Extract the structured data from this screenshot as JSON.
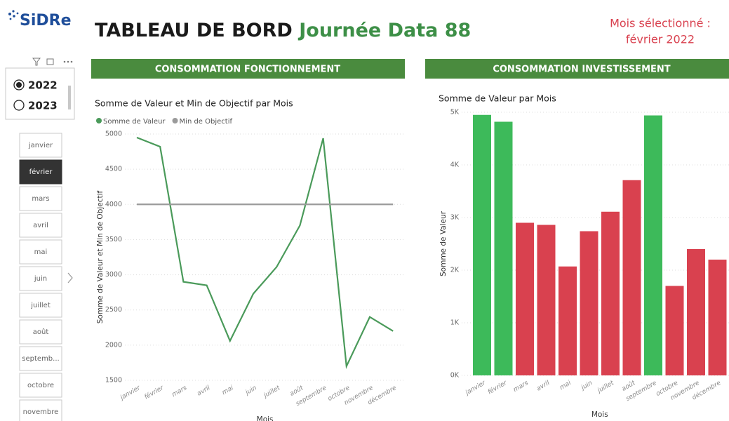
{
  "header": {
    "logo": "SiDRe",
    "title": "TABLEAU DE BORD",
    "title_highlight": "Journée Data 88",
    "selected_label": "Mois sélectionné :",
    "selected_value": "février 2022"
  },
  "year_slicer": {
    "options": [
      "2022",
      "2023"
    ],
    "selected": "2022"
  },
  "month_slicer": {
    "options": [
      "janvier",
      "février",
      "mars",
      "avril",
      "mai",
      "juin",
      "juillet",
      "août",
      "septemb...",
      "octobre",
      "novembre"
    ],
    "selected": "février"
  },
  "panels": [
    "CONSOMMATION FONCTIONNEMENT",
    "CONSOMMATION INVESTISSEMENT"
  ],
  "chart_data": [
    {
      "type": "line",
      "title": "Somme de Valeur et Min de Objectif par Mois",
      "x_label": "Mois",
      "y_label": "Somme de Valeur et Min de Objectif",
      "categories": [
        "janvier",
        "février",
        "mars",
        "avril",
        "mai",
        "juin",
        "juillet",
        "août",
        "septembre",
        "octobre",
        "novembre",
        "décembre"
      ],
      "series": [
        {
          "name": "Somme de Valeur",
          "color": "#4a9a5a",
          "values": [
            4950,
            4820,
            2900,
            2850,
            2060,
            2730,
            3110,
            3700,
            4940,
            1700,
            2400,
            2200
          ]
        },
        {
          "name": "Min de Objectif",
          "color": "#9a9a9a",
          "values": [
            4000,
            4000,
            4000,
            4000,
            4000,
            4000,
            4000,
            4000,
            4000,
            4000,
            4000,
            4000
          ]
        }
      ],
      "ylim": [
        1500,
        5000
      ],
      "yticks": [
        1500,
        2000,
        2500,
        3000,
        3500,
        4000,
        4500,
        5000
      ],
      "grid": true
    },
    {
      "type": "bar",
      "title": "Somme de Valeur par Mois",
      "x_label": "Mois",
      "y_label": "Somme de Valeur",
      "categories": [
        "janvier",
        "février",
        "mars",
        "avril",
        "mai",
        "juin",
        "juillet",
        "août",
        "septembre",
        "octobre",
        "novembre",
        "décembre"
      ],
      "values": [
        4950,
        4820,
        2900,
        2860,
        2070,
        2740,
        3110,
        3710,
        4940,
        1700,
        2400,
        2200
      ],
      "colors": [
        "#3dba5a",
        "#3dba5a",
        "#d9414f",
        "#d9414f",
        "#d9414f",
        "#d9414f",
        "#d9414f",
        "#d9414f",
        "#3dba5a",
        "#d9414f",
        "#d9414f",
        "#d9414f"
      ],
      "ylim": [
        0,
        5000
      ],
      "yticks": [
        {
          "value": 0,
          "label": "0K"
        },
        {
          "value": 1000,
          "label": "1K"
        },
        {
          "value": 2000,
          "label": "2K"
        },
        {
          "value": 3000,
          "label": "3K"
        },
        {
          "value": 4000,
          "label": "4K"
        },
        {
          "value": 5000,
          "label": "5K"
        }
      ],
      "grid": true
    }
  ]
}
